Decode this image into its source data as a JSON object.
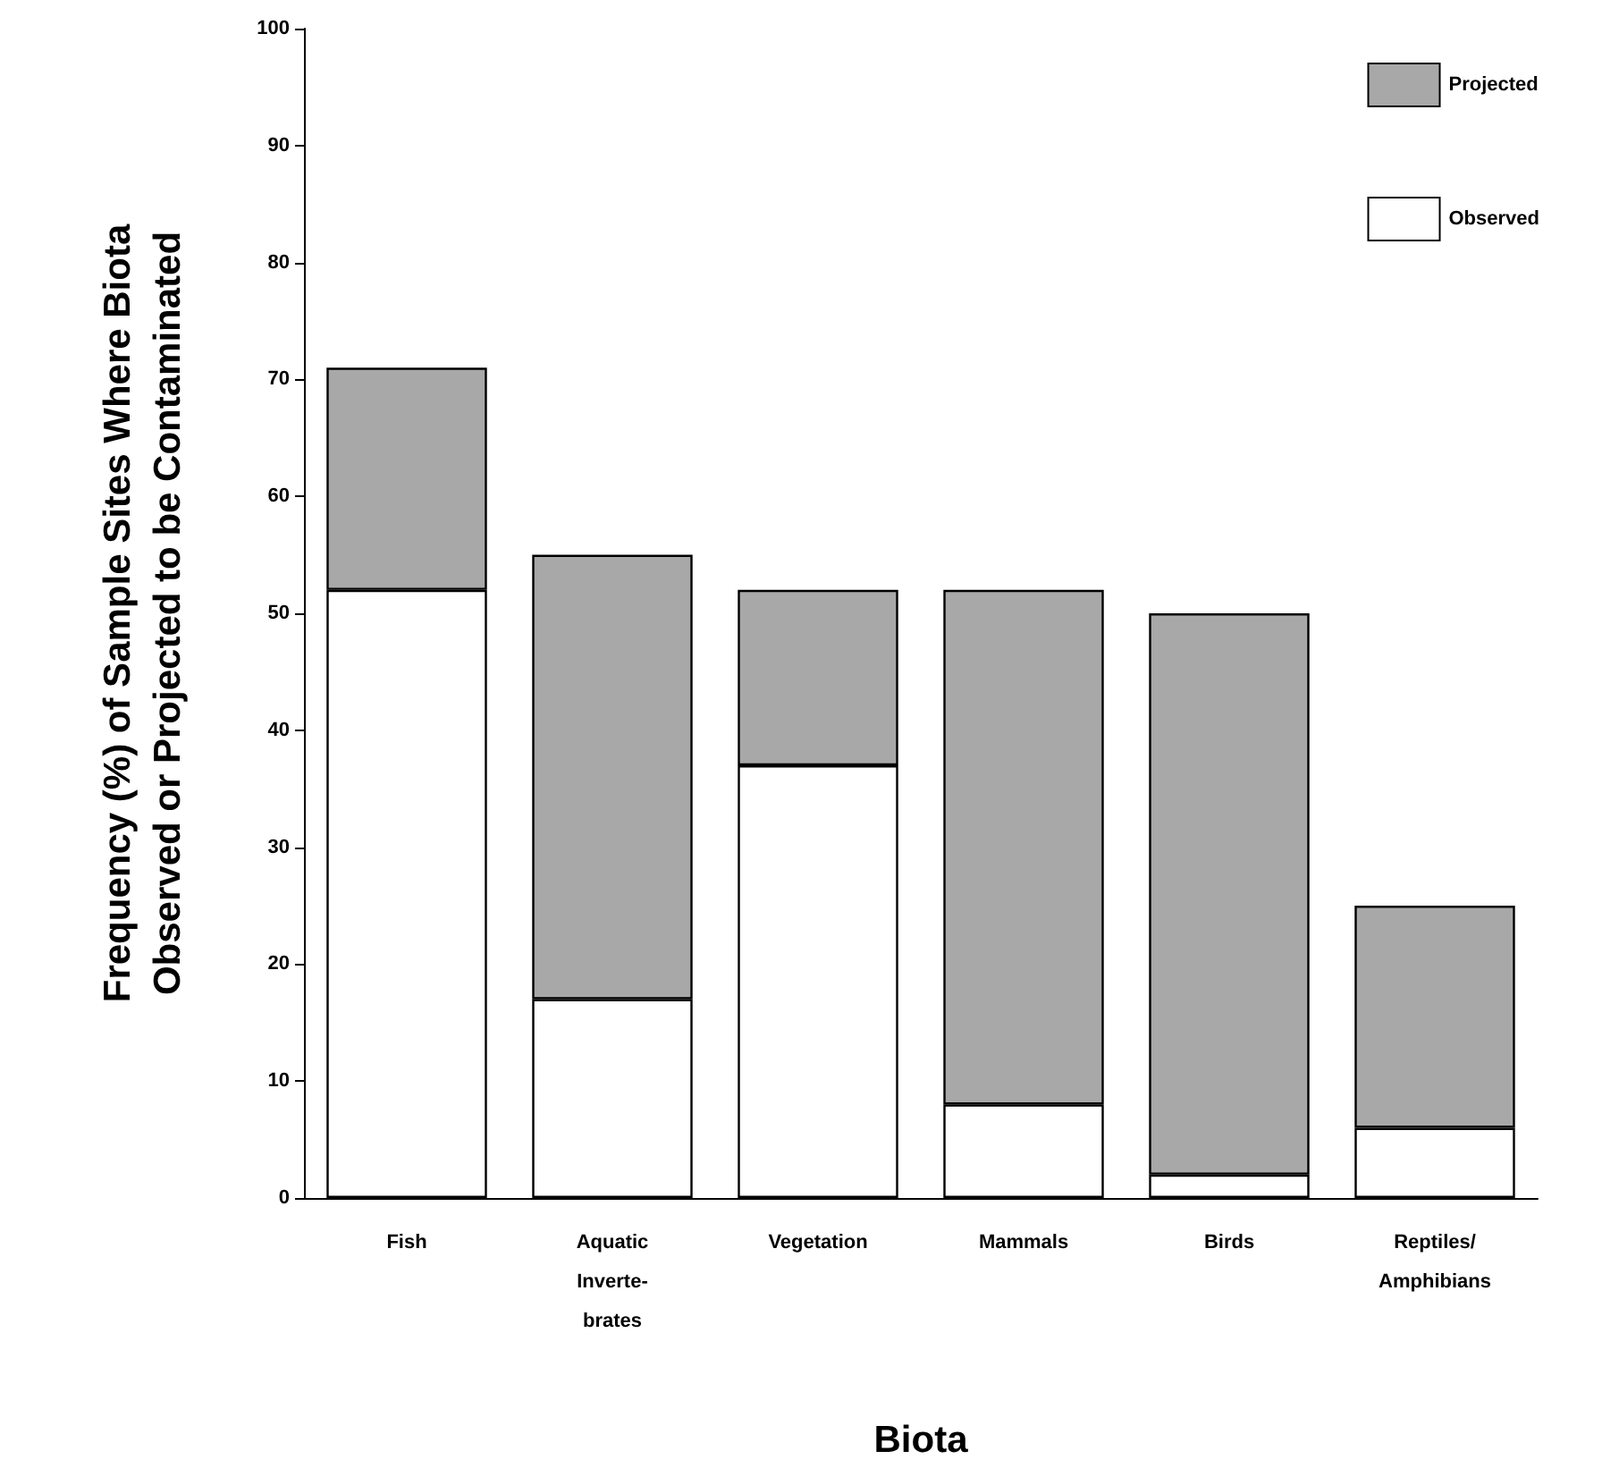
{
  "chart_data": {
    "type": "bar",
    "stacked": true,
    "xlabel": "Biota",
    "ylabel": "Frequency (%) of Sample Sites Where Biota\nObserved or Projected to be Contaminated",
    "categories": [
      "Fish",
      "Aquatic\nInverte-\nbrates",
      "Vegetation",
      "Mammals",
      "Birds",
      "Reptiles/\nAmphibians"
    ],
    "series": [
      {
        "name": "Observed",
        "color": "#ffffff",
        "values": [
          52,
          17,
          37,
          8,
          2,
          6
        ]
      },
      {
        "name": "Projected",
        "color": "#a8a8a8",
        "values": [
          19,
          38,
          15,
          44,
          48,
          19
        ]
      }
    ],
    "ylim": [
      0,
      100
    ],
    "yticks": [
      0,
      10,
      20,
      30,
      40,
      50,
      60,
      70,
      80,
      90,
      100
    ],
    "grid": false,
    "legend": "top right"
  }
}
